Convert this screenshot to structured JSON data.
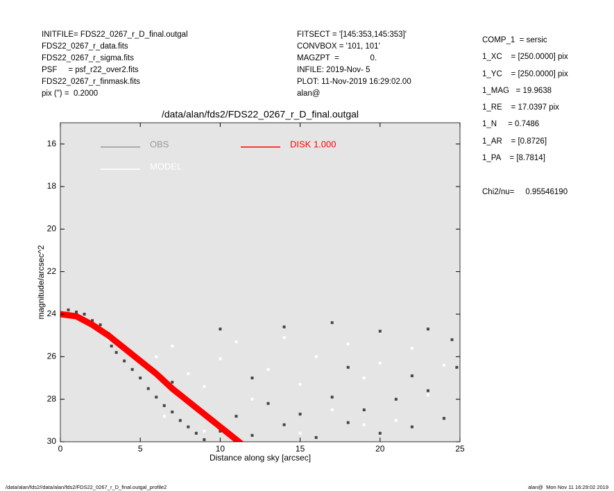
{
  "header": {
    "left": [
      "INITFILE= FDS22_0267_r_D_final.outgal",
      "FDS22_0267_r_data.fits",
      "FDS22_0267_r_sigma.fits",
      "PSF     = psf_r22_over2.fits",
      "FDS22_0267_r_finmask.fits",
      "pix (\") =  0.2000"
    ],
    "middle": [
      "FITSECT = '[145:353,145:353]'",
      "CONVBOX = '101, 101'",
      "MAGZPT  =              0.",
      "INFILE: 2019-Nov- 5",
      "PLOT: 11-Nov-2019 16:29:02.00",
      "alan@"
    ],
    "right": [
      "COMP_1  = sersic",
      "1_XC    = [250.0000] pix",
      "1_YC    = [250.0000] pix",
      "1_MAG   = 19.9638",
      "1_RE    = 17.0397 pix",
      "1_N     = 0.7486",
      "1_AR    = [0.8726]",
      "1_PA    = [8.7814]",
      "",
      "Chi2/nu=     0.95546190"
    ]
  },
  "footer": {
    "left": "/data/alan/fds2//data/alan/fds2/FDS22_0267_r_D_final.outgal_profile2",
    "right": "alan@  Mon Nov 11 16:29:02 2019"
  },
  "chart_data": {
    "type": "scatter",
    "title": "/data/alan/fds2/FDS22_0267_r_D_final.outgal",
    "x_label": "Distance along sky [arcsec]",
    "y_label": "magnitude/arcsec^2",
    "xlim": [
      0,
      25
    ],
    "xticks": [
      0,
      5,
      10,
      15,
      20,
      25
    ],
    "ylim": [
      15,
      30
    ],
    "yticks": [
      16,
      18,
      20,
      22,
      24,
      26,
      28,
      30
    ],
    "y_inverted": true,
    "background": "#e5e5e5",
    "series": [
      {
        "name": "OBS",
        "kind": "scatter",
        "color": "#999999",
        "marker_color": "#444444",
        "x": [
          0.5,
          1,
          1.5,
          2,
          2.5,
          3,
          3.2,
          3.5,
          4,
          4.5,
          5,
          5.5,
          6,
          6.5,
          7,
          7.5,
          8,
          8.5,
          9,
          10,
          11,
          12,
          13,
          14,
          15,
          16,
          17,
          18,
          19,
          20,
          21,
          22,
          23,
          24,
          24.8,
          10,
          14,
          17,
          20,
          23,
          24.5,
          7,
          12,
          18,
          22
        ],
        "values": [
          23.8,
          23.9,
          24.0,
          24.3,
          24.5,
          24.9,
          25.5,
          25.8,
          26.2,
          26.6,
          27.0,
          27.5,
          27.9,
          28.3,
          28.6,
          29.0,
          29.3,
          29.6,
          29.9,
          29.5,
          28.8,
          29.7,
          28.2,
          29.2,
          28.7,
          29.8,
          27.9,
          29.1,
          28.5,
          29.6,
          28.0,
          29.3,
          27.6,
          28.9,
          26.5,
          24.7,
          24.6,
          24.4,
          24.8,
          24.7,
          25.2,
          27.2,
          27.0,
          26.5,
          26.9
        ]
      },
      {
        "name": "MODEL",
        "kind": "scatter",
        "color": "#ffffff",
        "marker_color": "#ffffff",
        "x": [
          1,
          2,
          3,
          4,
          5,
          6,
          7,
          8,
          9,
          10,
          11,
          12,
          13,
          14,
          15,
          16,
          17,
          18,
          19,
          20,
          21,
          22,
          23,
          24,
          6.5,
          9,
          15,
          19
        ],
        "values": [
          24.2,
          24.6,
          25.2,
          25.7,
          26.3,
          26.0,
          25.5,
          26.8,
          27.4,
          26.1,
          25.3,
          28.0,
          26.6,
          25.1,
          27.3,
          26.0,
          28.5,
          25.4,
          27.0,
          26.3,
          29.0,
          25.6,
          27.8,
          26.4,
          28.8,
          29.5,
          29.6,
          29.2
        ]
      },
      {
        "name": "DISK  1.000",
        "kind": "line",
        "color": "#ff0000",
        "x": [
          0,
          1,
          2,
          3,
          4,
          5,
          6,
          7,
          8,
          9,
          10,
          11,
          11.5
        ],
        "values": [
          24.0,
          24.1,
          24.5,
          25.0,
          25.6,
          26.2,
          26.8,
          27.5,
          28.1,
          28.7,
          29.3,
          29.9,
          30.2
        ]
      }
    ]
  }
}
